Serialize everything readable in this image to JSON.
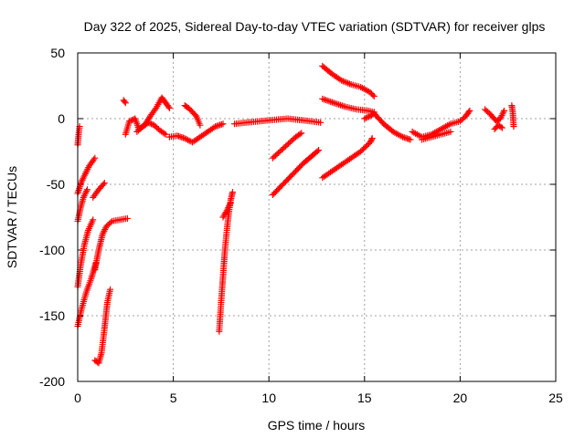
{
  "chart_data": {
    "type": "scatter",
    "title": "Day 322 of 2025, Sidereal Day-to-day VTEC variation (SDTVAR) for receiver glps",
    "xlabel": "GPS time / hours",
    "ylabel": "SDTVAR / TECUs",
    "xlim": [
      0,
      25
    ],
    "ylim": [
      -200,
      50
    ],
    "xticks": [
      0,
      5,
      10,
      15,
      20,
      25
    ],
    "yticks": [
      -200,
      -150,
      -100,
      -50,
      0,
      50
    ],
    "grid": true,
    "marker": "plus",
    "color": "#ff0000",
    "segments": [
      {
        "name": "arc-a",
        "points": [
          [
            0.0,
            -20
          ],
          [
            0.05,
            -12
          ],
          [
            0.1,
            -6
          ]
        ]
      },
      {
        "name": "arc-b",
        "points": [
          [
            0.0,
            -57
          ],
          [
            0.2,
            -48
          ],
          [
            0.4,
            -42
          ],
          [
            0.6,
            -36
          ],
          [
            0.9,
            -30
          ]
        ]
      },
      {
        "name": "arc-c",
        "points": [
          [
            0.0,
            -78
          ],
          [
            0.15,
            -68
          ],
          [
            0.3,
            -60
          ],
          [
            0.5,
            -54
          ]
        ]
      },
      {
        "name": "arc-d",
        "points": [
          [
            0.0,
            -128
          ],
          [
            0.15,
            -112
          ],
          [
            0.35,
            -96
          ],
          [
            0.55,
            -85
          ],
          [
            0.8,
            -77
          ]
        ]
      },
      {
        "name": "arc-e",
        "points": [
          [
            0.0,
            -158
          ],
          [
            0.2,
            -145
          ],
          [
            0.45,
            -132
          ],
          [
            0.7,
            -122
          ],
          [
            0.95,
            -110
          ]
        ]
      },
      {
        "name": "arc-f",
        "points": [
          [
            0.8,
            -60
          ],
          [
            1.1,
            -54
          ],
          [
            1.4,
            -49
          ]
        ]
      },
      {
        "name": "arc-g",
        "points": [
          [
            0.9,
            -115
          ],
          [
            1.1,
            -100
          ],
          [
            1.3,
            -88
          ],
          [
            1.5,
            -82
          ],
          [
            1.8,
            -78
          ],
          [
            2.6,
            -76
          ]
        ]
      },
      {
        "name": "arc-h",
        "points": [
          [
            0.9,
            -184
          ],
          [
            1.1,
            -186
          ],
          [
            1.25,
            -178
          ],
          [
            1.4,
            -160
          ],
          [
            1.55,
            -140
          ],
          [
            1.7,
            -130
          ]
        ]
      },
      {
        "name": "arc-i",
        "points": [
          [
            2.4,
            14
          ],
          [
            2.5,
            12
          ]
        ]
      },
      {
        "name": "arc-j",
        "points": [
          [
            2.5,
            -12
          ],
          [
            2.7,
            -2
          ],
          [
            3.0,
            0
          ],
          [
            3.2,
            -8
          ],
          [
            3.5,
            -5
          ],
          [
            3.8,
            2
          ],
          [
            4.1,
            8
          ],
          [
            4.4,
            16
          ],
          [
            4.6,
            12
          ],
          [
            4.8,
            8
          ]
        ]
      },
      {
        "name": "arc-k",
        "points": [
          [
            3.1,
            -10
          ],
          [
            3.4,
            -6
          ],
          [
            3.7,
            -3
          ],
          [
            4.0,
            -5
          ],
          [
            4.3,
            -9
          ],
          [
            4.6,
            -12
          ]
        ]
      },
      {
        "name": "arc-l",
        "points": [
          [
            5.6,
            10
          ],
          [
            5.8,
            8
          ],
          [
            6.0,
            5
          ],
          [
            6.2,
            2
          ],
          [
            6.4,
            -5
          ]
        ]
      },
      {
        "name": "arc-m",
        "points": [
          [
            4.8,
            -14
          ],
          [
            5.2,
            -13
          ],
          [
            5.6,
            -15
          ],
          [
            6.0,
            -18
          ],
          [
            6.4,
            -14
          ],
          [
            6.8,
            -10
          ],
          [
            7.2,
            -6
          ],
          [
            7.6,
            -4
          ]
        ]
      },
      {
        "name": "arc-n",
        "points": [
          [
            7.4,
            -162
          ],
          [
            7.5,
            -140
          ],
          [
            7.6,
            -120
          ],
          [
            7.7,
            -100
          ],
          [
            7.8,
            -85
          ],
          [
            7.9,
            -72
          ],
          [
            8.0,
            -62
          ],
          [
            8.1,
            -56
          ]
        ]
      },
      {
        "name": "arc-o",
        "points": [
          [
            7.6,
            -75
          ],
          [
            7.8,
            -70
          ],
          [
            8.0,
            -64
          ]
        ]
      },
      {
        "name": "arc-p",
        "points": [
          [
            8.2,
            -4
          ],
          [
            8.8,
            -3
          ],
          [
            9.5,
            -2
          ],
          [
            10.2,
            -1
          ],
          [
            11.0,
            0
          ],
          [
            11.6,
            -1
          ],
          [
            12.2,
            -2
          ],
          [
            12.7,
            -3
          ]
        ]
      },
      {
        "name": "arc-q",
        "points": [
          [
            10.2,
            -58
          ],
          [
            10.6,
            -52
          ],
          [
            11.0,
            -46
          ],
          [
            11.4,
            -40
          ],
          [
            11.8,
            -34
          ],
          [
            12.2,
            -29
          ],
          [
            12.6,
            -24
          ]
        ]
      },
      {
        "name": "arc-r",
        "points": [
          [
            10.2,
            -30
          ],
          [
            10.5,
            -26
          ],
          [
            10.8,
            -22
          ],
          [
            11.1,
            -18
          ],
          [
            11.4,
            -14
          ],
          [
            11.7,
            -11
          ]
        ]
      },
      {
        "name": "arc-s",
        "points": [
          [
            12.8,
            40
          ],
          [
            13.3,
            34
          ],
          [
            13.8,
            29
          ],
          [
            14.3,
            26
          ],
          [
            14.8,
            24
          ],
          [
            15.3,
            20
          ],
          [
            15.5,
            17
          ]
        ]
      },
      {
        "name": "arc-t",
        "points": [
          [
            12.8,
            15
          ],
          [
            13.4,
            12
          ],
          [
            14.0,
            9
          ],
          [
            14.6,
            7
          ],
          [
            15.2,
            6
          ],
          [
            15.5,
            5
          ]
        ]
      },
      {
        "name": "arc-u",
        "points": [
          [
            12.8,
            -45
          ],
          [
            13.3,
            -40
          ],
          [
            13.8,
            -35
          ],
          [
            14.3,
            -30
          ],
          [
            14.8,
            -25
          ],
          [
            15.3,
            -18
          ],
          [
            15.4,
            -15
          ]
        ]
      },
      {
        "name": "arc-v",
        "points": [
          [
            15.0,
            0
          ],
          [
            15.3,
            2
          ],
          [
            15.5,
            4
          ],
          [
            16.0,
            -4
          ],
          [
            16.5,
            -10
          ],
          [
            17.0,
            -14
          ],
          [
            17.4,
            -16
          ]
        ]
      },
      {
        "name": "arc-w",
        "points": [
          [
            17.5,
            -10
          ],
          [
            18.0,
            -14
          ],
          [
            18.5,
            -12
          ],
          [
            19.0,
            -8
          ],
          [
            19.5,
            -4
          ],
          [
            20.0,
            -2
          ],
          [
            20.3,
            2
          ],
          [
            20.5,
            6
          ]
        ]
      },
      {
        "name": "arc-x",
        "points": [
          [
            18.0,
            -16
          ],
          [
            18.5,
            -14
          ],
          [
            19.0,
            -12
          ],
          [
            19.5,
            -10
          ]
        ]
      },
      {
        "name": "arc-y",
        "points": [
          [
            21.3,
            7
          ],
          [
            21.6,
            3
          ],
          [
            21.9,
            -2
          ],
          [
            22.1,
            0
          ],
          [
            22.3,
            6
          ]
        ]
      },
      {
        "name": "arc-z",
        "points": [
          [
            21.8,
            -8
          ],
          [
            22.0,
            -5
          ],
          [
            22.2,
            -7
          ]
        ]
      },
      {
        "name": "arc-za",
        "points": [
          [
            22.7,
            10
          ],
          [
            22.75,
            5
          ],
          [
            22.8,
            -6
          ]
        ]
      }
    ]
  }
}
